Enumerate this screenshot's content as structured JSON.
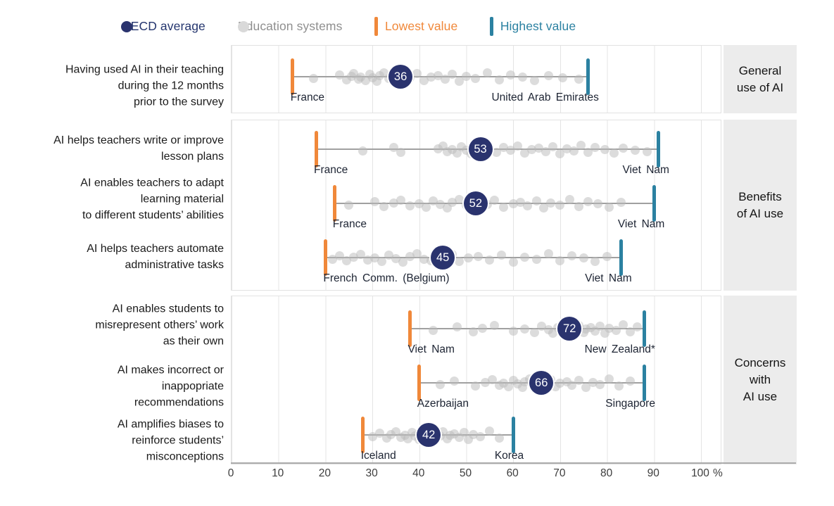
{
  "legend": {
    "items": [
      {
        "label": "OECD average",
        "marker": "dot",
        "color": "#2a336e",
        "text_color": "#24356e"
      },
      {
        "label": "Education systems",
        "marker": "dot",
        "color": "#d9d9d9",
        "text_color": "#8f8f8f"
      },
      {
        "label": "Lowest value",
        "marker": "bar",
        "color": "#f0883a",
        "text_color": "#f0883a"
      },
      {
        "label": "Highest value",
        "marker": "bar",
        "color": "#2b81a1",
        "text_color": "#2b81a1"
      }
    ]
  },
  "colors": {
    "oecd": "#2a336e",
    "education_system_dot": "#d9d9d9",
    "lowest": "#f0883a",
    "highest": "#2b81a1",
    "gridline": "#e4e4e4",
    "section_box_bg": "#ececec"
  },
  "chart_data": {
    "type": "scatter",
    "title": "",
    "xlabel": "%",
    "axis": {
      "min": 0,
      "max": 100,
      "tick_step": 10,
      "ticks": [
        0,
        10,
        20,
        30,
        40,
        50,
        60,
        70,
        80,
        90,
        100
      ],
      "unit": "%",
      "grid": true
    },
    "legend_position": "top",
    "jitter_pattern": [
      2,
      -3,
      4,
      -1,
      -5,
      3,
      0,
      5,
      -4,
      1,
      6,
      -2,
      -6,
      2,
      4,
      -3,
      1,
      -5,
      5,
      0,
      -2,
      3,
      -4,
      6,
      -1,
      2,
      -6,
      4,
      -3,
      0,
      5,
      -2,
      1,
      3
    ],
    "panels": [
      {
        "section": "General use of AI",
        "section_lines": [
          "General",
          "use of AI"
        ],
        "rows": [
          {
            "label": "Having used AI in their teaching during the 12 months prior to the survey",
            "label_lines": [
              "Having used AI in their teaching",
              "during the 12 months",
              "prior to the survey"
            ],
            "oecd_avg": 36,
            "lowest": {
              "name": "France",
              "value": 13
            },
            "highest": {
              "name": "United Arab Emirates",
              "value": 76
            },
            "dots": [
              17.5,
              23,
              24.5,
              25.5,
              26,
              27,
              27.5,
              28.5,
              29.5,
              30,
              31,
              31.5,
              32.5,
              33.5,
              34.5,
              36.5,
              38,
              39.5,
              41,
              42.5,
              44,
              45.5,
              47,
              48.5,
              50,
              52,
              54.5,
              57,
              59.5,
              62,
              64.5,
              67.5,
              70.5,
              74
            ]
          }
        ]
      },
      {
        "section": "Benefits of AI use",
        "section_lines": [
          "Benefits",
          "of AI use"
        ],
        "rows": [
          {
            "label": "AI helps teachers write or improve lesson plans",
            "label_lines": [
              "AI helps teachers write or improve",
              "lesson plans"
            ],
            "oecd_avg": 53,
            "lowest": {
              "name": "France",
              "value": 18
            },
            "highest": {
              "name": "Viet Nam",
              "value": 91
            },
            "dots": [
              28,
              34.5,
              36,
              44,
              45,
              46,
              47,
              48,
              49,
              50,
              51,
              52,
              53.5,
              55,
              56.5,
              58,
              59.5,
              61,
              62.5,
              64,
              65.5,
              67,
              68.5,
              70,
              71.5,
              73,
              74.5,
              76,
              77.5,
              79.5,
              81.5,
              83.5,
              86,
              88.5
            ]
          },
          {
            "label": "AI enables teachers to adapt learning material to different students’ abilities",
            "label_lines": [
              "AI enables teachers to adapt",
              "learning material",
              "to different students’ abilities"
            ],
            "oecd_avg": 52,
            "lowest": {
              "name": "France",
              "value": 22
            },
            "highest": {
              "name": "Viet Nam",
              "value": 90
            },
            "dots": [
              25,
              30.5,
              32.5,
              34.5,
              36,
              38,
              40,
              41.5,
              43,
              44.5,
              46,
              47,
              48.5,
              50,
              51.5,
              53,
              54.5,
              56,
              58,
              60,
              61.5,
              63,
              65,
              66.5,
              68,
              70,
              72,
              74,
              76,
              78,
              80.5,
              83
            ]
          },
          {
            "label": "AI helps teachers automate administrative tasks",
            "label_lines": [
              "AI helps teachers automate",
              "administrative tasks"
            ],
            "oecd_avg": 45,
            "lowest": {
              "name": "French Comm. (Belgium)",
              "value": 20
            },
            "highest": {
              "name": "Viet Nam",
              "value": 83
            },
            "dots": [
              21.5,
              23,
              24.5,
              26,
              27.5,
              29,
              30.5,
              32,
              33.5,
              35,
              36.5,
              38,
              39.5,
              41,
              42.5,
              44,
              45.5,
              47,
              48.5,
              50.5,
              52.5,
              55,
              57.5,
              60,
              62.5,
              65,
              67.5,
              70,
              72.5,
              75,
              77.5,
              80
            ]
          }
        ]
      },
      {
        "section": "Concerns with AI use",
        "section_lines": [
          "Concerns",
          "with",
          "AI use"
        ],
        "rows": [
          {
            "label": "AI enables students to misrepresent others’ work as their own",
            "label_lines": [
              "AI enables students to",
              "misrepresent others’ work",
              "as their own"
            ],
            "oecd_avg": 72,
            "lowest": {
              "name": "Viet Nam",
              "value": 38
            },
            "highest": {
              "name": "New Zealand*",
              "value": 88
            },
            "dots": [
              43,
              48,
              51.5,
              53.5,
              56,
              60,
              62.5,
              64.5,
              66,
              67.5,
              68.5,
              69.5,
              70.5,
              71,
              72,
              72.5,
              73.5,
              74,
              75,
              75.5,
              76.5,
              77.5,
              78.5,
              79.5,
              80.5,
              82,
              83.5,
              85,
              86.5
            ]
          },
          {
            "label": "AI makes incorrect or inappopriate recommendations",
            "label_lines": [
              "AI makes incorrect or",
              "inappopriate",
              "recommendations"
            ],
            "oecd_avg": 66,
            "lowest": {
              "name": "Azerbaijan",
              "value": 40
            },
            "highest": {
              "name": "Singapore",
              "value": 88
            },
            "dots": [
              44.5,
              47.5,
              52,
              54,
              55.5,
              57,
              58,
              59,
              60,
              61,
              62,
              62.5,
              63.5,
              64.5,
              65,
              66,
              67,
              68,
              69,
              70,
              71.5,
              72.5,
              74,
              75.5,
              77,
              78.5,
              80.5,
              82.5,
              85
            ]
          },
          {
            "label": "AI amplifies biases to reinforce students’ misconceptions",
            "label_lines": [
              "AI amplifies biases to",
              "reinforce students’",
              "misconceptions"
            ],
            "oecd_avg": 42,
            "lowest": {
              "name": "Iceland",
              "value": 28
            },
            "highest": {
              "name": "Korea",
              "value": 60
            },
            "dots": [
              30,
              31.5,
              33,
              34,
              35,
              36,
              37,
              37.5,
              38.5,
              39,
              40,
              40.5,
              41.5,
              42,
              43,
              43.5,
              44.5,
              45,
              46,
              46.5,
              47.5,
              48.5,
              49.5,
              50.5,
              51.5,
              53,
              55,
              57
            ]
          }
        ]
      }
    ]
  }
}
